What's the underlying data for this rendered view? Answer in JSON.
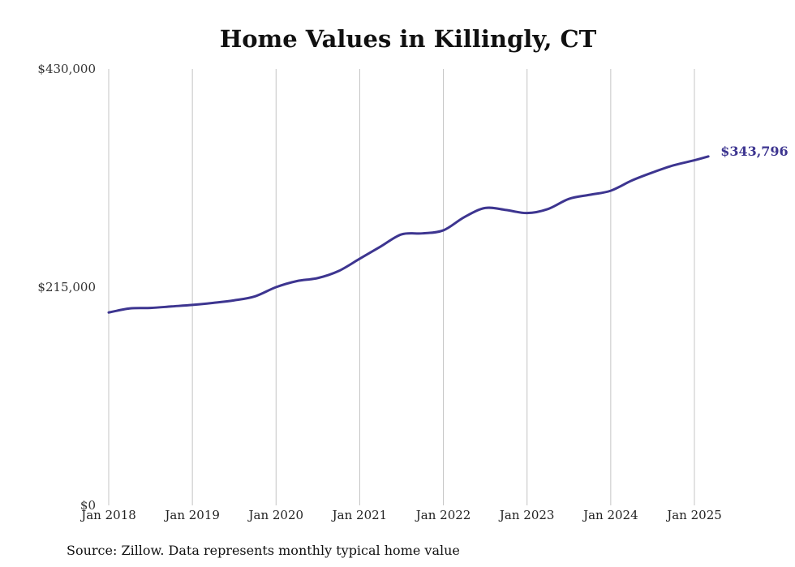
{
  "chart_data": {
    "type": "line",
    "title": "Home Values in Killingly, CT",
    "source": "Source: Zillow. Data represents monthly typical home value",
    "ylim": [
      0,
      430000
    ],
    "yticks": [
      {
        "value": 0,
        "label": "$0"
      },
      {
        "value": 215000,
        "label": "$215,000"
      },
      {
        "value": 430000,
        "label": "$430,000"
      }
    ],
    "xlim": [
      "2018-01",
      "2025-03"
    ],
    "xticks": [
      {
        "date": "2018-01",
        "label": "Jan 2018"
      },
      {
        "date": "2019-01",
        "label": "Jan 2019"
      },
      {
        "date": "2020-01",
        "label": "Jan 2020"
      },
      {
        "date": "2021-01",
        "label": "Jan 2021"
      },
      {
        "date": "2022-01",
        "label": "Jan 2022"
      },
      {
        "date": "2023-01",
        "label": "Jan 2023"
      },
      {
        "date": "2024-01",
        "label": "Jan 2024"
      },
      {
        "date": "2025-01",
        "label": "Jan 2025"
      }
    ],
    "grid": "vertical",
    "line_color": "#3d3590",
    "series": [
      {
        "end_label": "$343,796",
        "x": [
          "2018-01",
          "2018-04",
          "2018-07",
          "2018-10",
          "2019-01",
          "2019-04",
          "2019-07",
          "2019-10",
          "2020-01",
          "2020-04",
          "2020-07",
          "2020-10",
          "2021-01",
          "2021-04",
          "2021-07",
          "2021-10",
          "2022-01",
          "2022-04",
          "2022-07",
          "2022-10",
          "2023-01",
          "2023-04",
          "2023-07",
          "2023-10",
          "2024-01",
          "2024-04",
          "2024-07",
          "2024-10",
          "2025-01",
          "2025-03"
        ],
        "values": [
          190000,
          194000,
          194500,
          196000,
          197500,
          199500,
          202000,
          206000,
          215000,
          221000,
          224000,
          231000,
          243000,
          255000,
          267000,
          268000,
          271000,
          284000,
          293000,
          291000,
          288000,
          292000,
          302000,
          306000,
          310000,
          320000,
          328000,
          335000,
          340000,
          343796
        ]
      }
    ]
  }
}
